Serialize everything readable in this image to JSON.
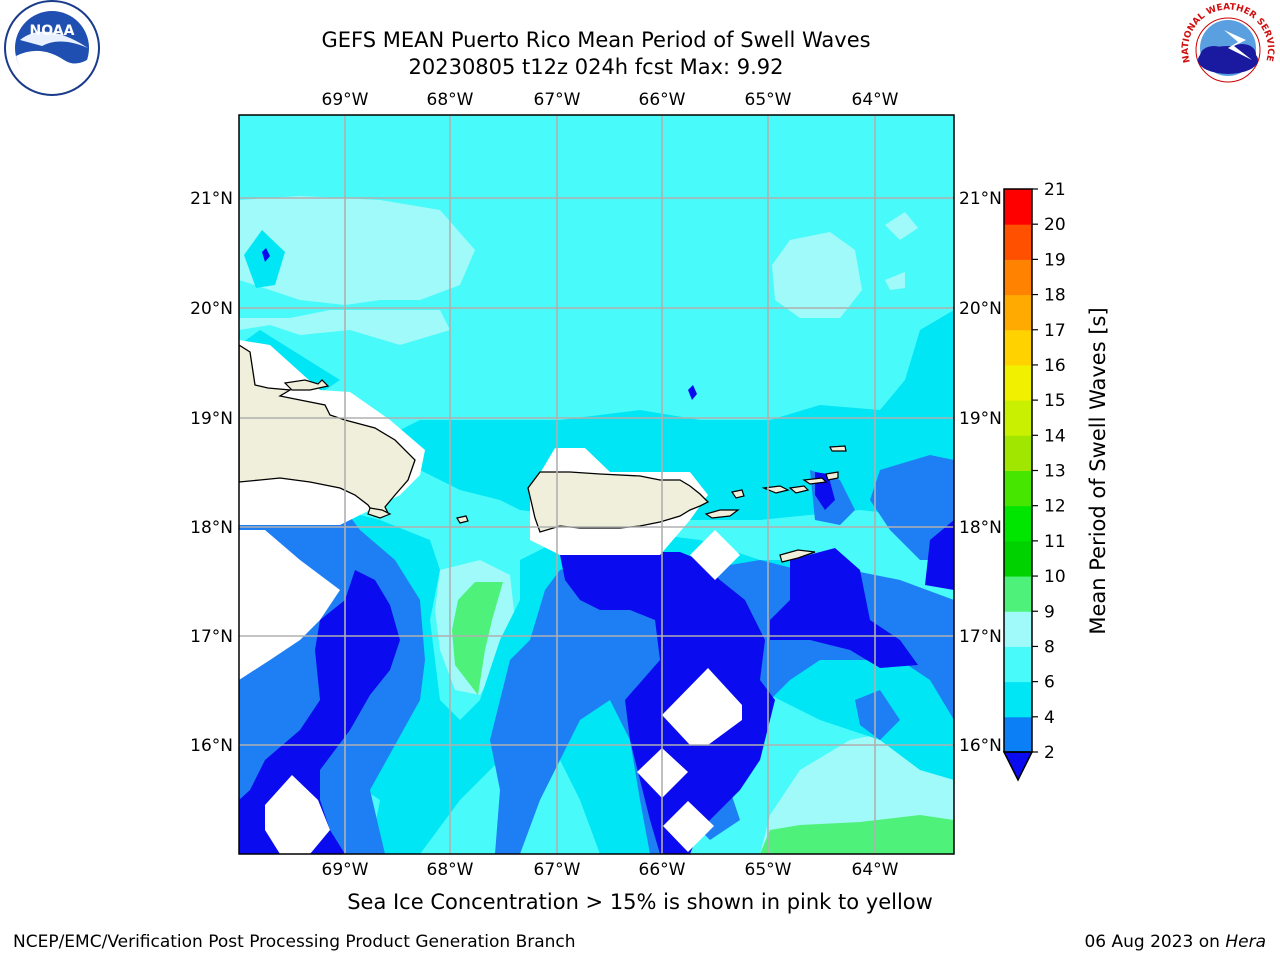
{
  "title": {
    "line1": "GEFS MEAN Puerto Rico Mean Period of Swell Waves",
    "line2": "20230805 t12z 024h fcst   Max: 9.92"
  },
  "map": {
    "lon_labels": [
      "69°W",
      "68°W",
      "67°W",
      "66°W",
      "65°W",
      "64°W"
    ],
    "lat_labels": [
      "21°N",
      "20°N",
      "19°N",
      "18°N",
      "17°N",
      "16°N"
    ],
    "extent": {
      "lon": [
        -69.9,
        -63.2
      ],
      "lat": [
        15.0,
        21.75
      ]
    },
    "gridlines": true,
    "land_color": "#efefdb",
    "colors": {
      "2-4": "#0b0bf0",
      "4-6": "#1e7ff5",
      "6-8": "#00e6f5",
      "8-9": "#49fafa",
      "9-10": "#a0fafa",
      "10-11": "#4ef27a",
      "no_data": "#ffffff"
    }
  },
  "colorbar": {
    "label": "Mean Period of Swell Waves [s]",
    "ticks": [
      "2",
      "4",
      "6",
      "8",
      "9",
      "10",
      "11",
      "12",
      "13",
      "14",
      "15",
      "16",
      "17",
      "18",
      "19",
      "20",
      "21"
    ],
    "colors": [
      "#0b7ff5",
      "#00e6f5",
      "#49fafa",
      "#a0fafa",
      "#4ef27a",
      "#00d200",
      "#00e600",
      "#46e600",
      "#a0e600",
      "#c8f000",
      "#f0f000",
      "#ffd200",
      "#ffaa00",
      "#ff8200",
      "#ff5000",
      "#ff0000"
    ],
    "extend_color": "#0b0bf0"
  },
  "subtitle": "Sea Ice Concentration > 15% is shown in pink to yellow",
  "footer": {
    "left": "NCEP/EMC/Verification Post Processing Product Generation Branch",
    "right_date": "06 Aug 2023 on ",
    "right_host": "Hera"
  },
  "logos": {
    "noaa_text": "NOAA",
    "nws_text": "NATIONAL WEATHER SERVICE"
  }
}
